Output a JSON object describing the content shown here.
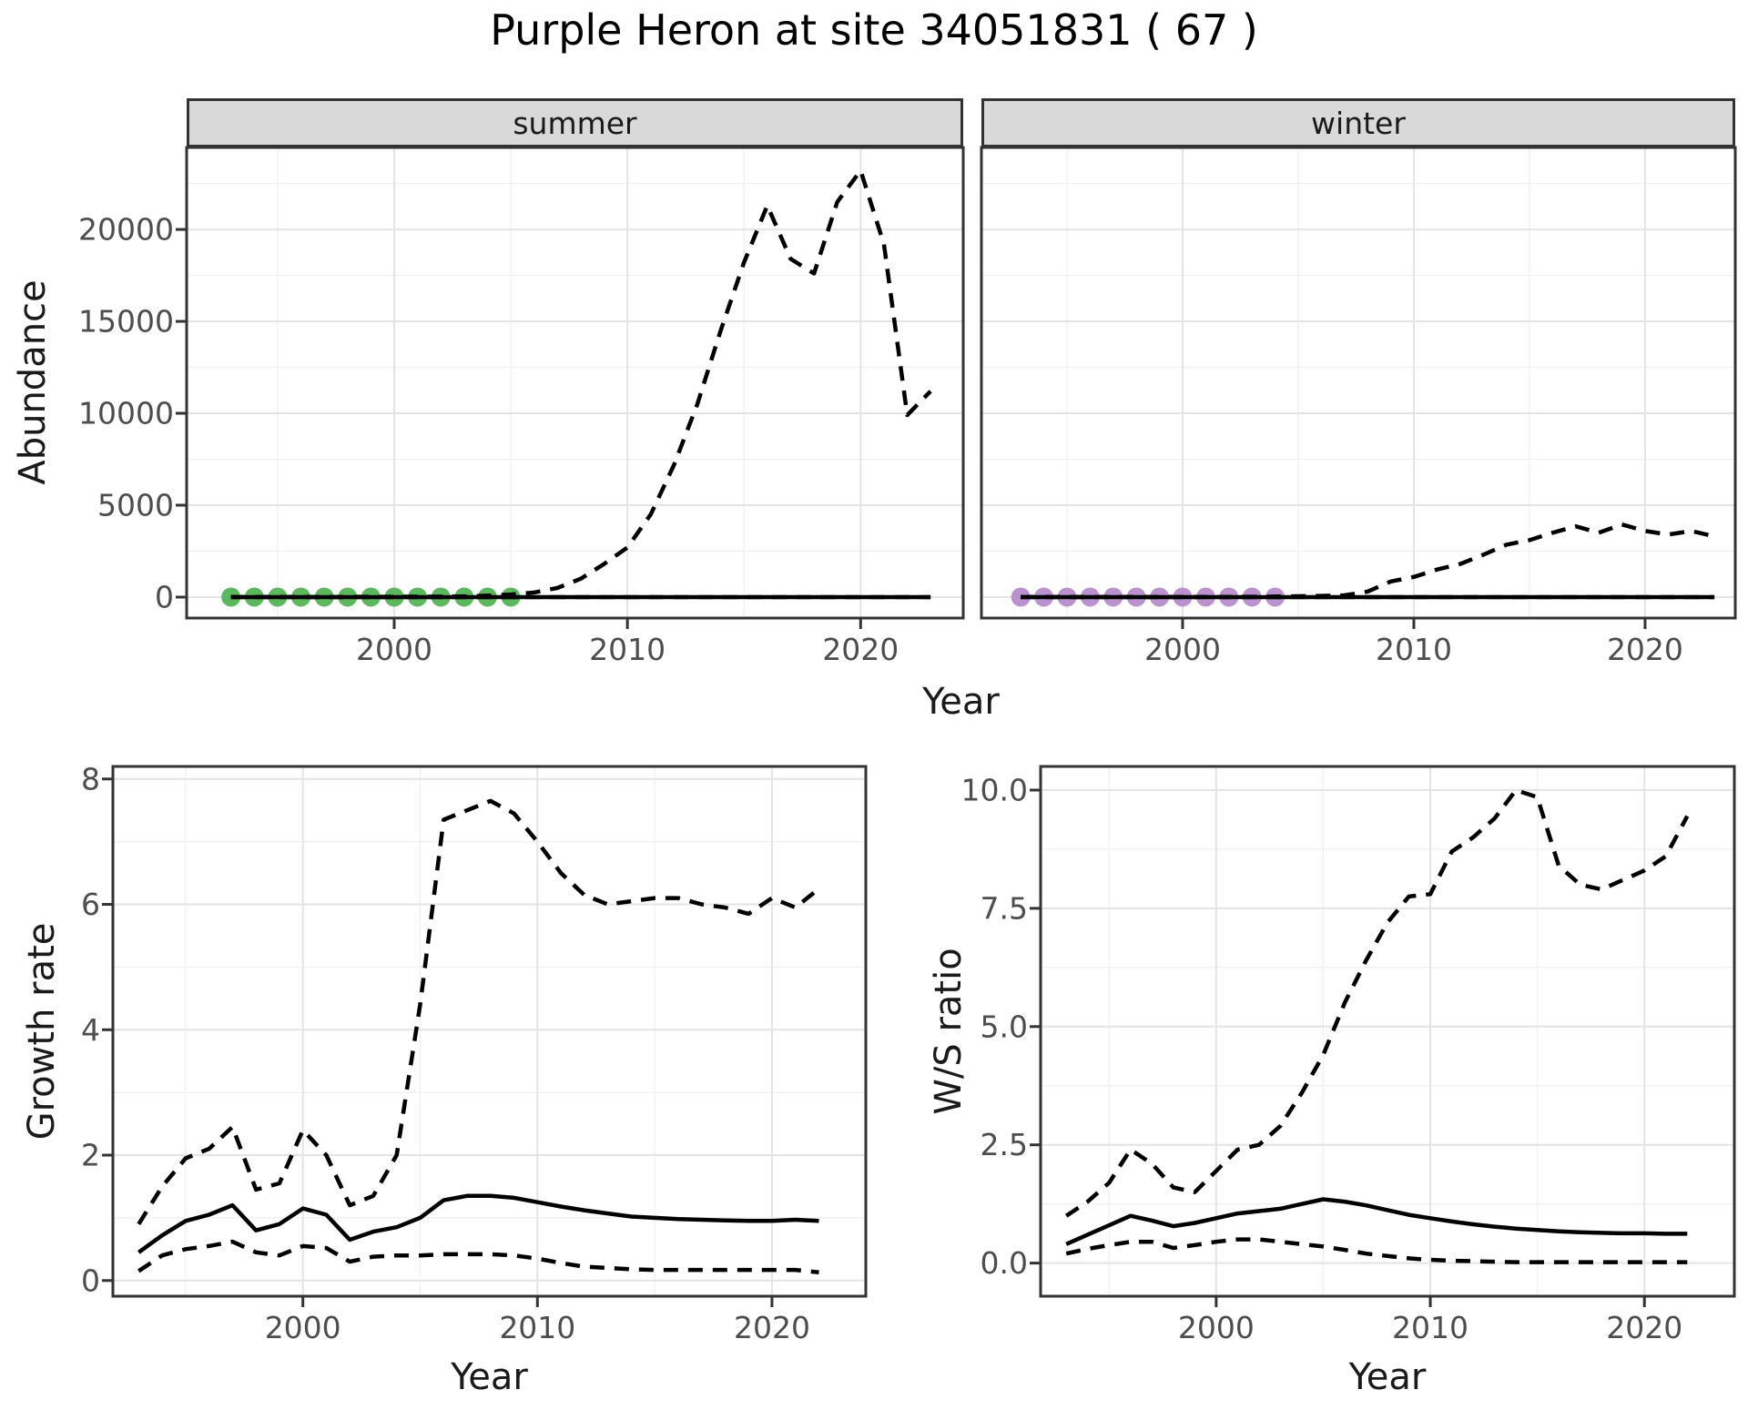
{
  "title": "Purple Heron at site 34051831 ( 67 )",
  "top_row": {
    "xlabel": "Year",
    "ylabel": "Abundance"
  },
  "colors": {
    "summer_points": "#5cb85c",
    "winter_points": "#ba92cd",
    "line": "#000000",
    "strip_bg": "#d9d9d9",
    "grid_major": "#e4e4e4",
    "grid_minor": "#f1f1f1",
    "panel_border": "#333333",
    "tick_label": "#4d4d4d"
  },
  "chart_data": [
    {
      "panel_id": "summer",
      "type": "line",
      "facet": "summer",
      "xlabel": "Year",
      "ylabel": "Abundance",
      "xlim": [
        1991.1,
        2024.4
      ],
      "ylim": [
        -1140,
        24460
      ],
      "grid": true,
      "legend": "none",
      "xticks": {
        "major": [
          2000,
          2010,
          2020
        ],
        "labels": [
          "2000",
          "2010",
          "2020"
        ],
        "minor": [
          1995,
          2005,
          2015
        ]
      },
      "yticks": {
        "major": [
          0,
          5000,
          10000,
          15000,
          20000
        ],
        "labels": [
          "0",
          "5000",
          "10000",
          "15000",
          "20000"
        ],
        "minor": [
          2500,
          7500,
          12500,
          17500,
          22500
        ]
      },
      "series": [
        {
          "name": "observed-counts",
          "type": "points",
          "color_key": "summer_points",
          "x": [
            1993,
            1994,
            1995,
            1996,
            1997,
            1998,
            1999,
            2000,
            2001,
            2002,
            2003,
            2004,
            2005
          ],
          "y": [
            0,
            0,
            0,
            0,
            0,
            0,
            0,
            0,
            0,
            0,
            0,
            0,
            0
          ]
        },
        {
          "name": "lower-ci",
          "type": "line",
          "dash": true,
          "x": [
            1993,
            1994,
            1995,
            1996,
            1997,
            1998,
            1999,
            2000,
            2001,
            2002,
            2003,
            2004,
            2005,
            2006,
            2007,
            2008,
            2009,
            2010,
            2011,
            2012,
            2013,
            2014,
            2015,
            2016,
            2017,
            2018,
            2019,
            2020,
            2021,
            2022,
            2023
          ],
          "y": [
            0,
            0,
            0,
            0,
            0,
            0,
            0,
            0,
            0,
            0,
            0,
            0,
            0,
            0,
            0,
            0,
            0,
            0,
            0,
            0,
            0,
            0,
            0,
            0,
            0,
            0,
            0,
            0,
            0,
            0,
            0
          ]
        },
        {
          "name": "fitted-median",
          "type": "line",
          "dash": false,
          "x": [
            1993,
            1994,
            1995,
            1996,
            1997,
            1998,
            1999,
            2000,
            2001,
            2002,
            2003,
            2004,
            2005,
            2006,
            2007,
            2008,
            2009,
            2010,
            2011,
            2012,
            2013,
            2014,
            2015,
            2016,
            2017,
            2018,
            2019,
            2020,
            2021,
            2022,
            2023
          ],
          "y": [
            0,
            0,
            0,
            0,
            0,
            0,
            0,
            0,
            0,
            0,
            0,
            0,
            0,
            0,
            0,
            0,
            0,
            0,
            0,
            0,
            0,
            0,
            0,
            0,
            0,
            0,
            0,
            0,
            0,
            0,
            0
          ]
        },
        {
          "name": "upper-ci",
          "type": "line",
          "dash": true,
          "x": [
            1993,
            1994,
            1995,
            1996,
            1997,
            1998,
            1999,
            2000,
            2001,
            2002,
            2003,
            2004,
            2005,
            2006,
            2007,
            2008,
            2009,
            2010,
            2011,
            2012,
            2013,
            2014,
            2015,
            2016,
            2017,
            2018,
            2019,
            2020,
            2021,
            2022,
            2023
          ],
          "y": [
            15,
            15,
            15,
            15,
            15,
            15,
            20,
            20,
            25,
            30,
            40,
            80,
            140,
            250,
            500,
            1000,
            1800,
            2700,
            4500,
            7200,
            10500,
            14500,
            18200,
            21300,
            18400,
            17600,
            21500,
            23200,
            19200,
            9900,
            11200
          ]
        }
      ]
    },
    {
      "panel_id": "winter",
      "type": "line",
      "facet": "winter",
      "xlabel": "Year",
      "ylabel": "Abundance",
      "xlim": [
        1991.3,
        2023.9
      ],
      "ylim": [
        -1140,
        24460
      ],
      "grid": true,
      "legend": "none",
      "xticks": {
        "major": [
          2000,
          2010,
          2020
        ],
        "labels": [
          "2000",
          "2010",
          "2020"
        ],
        "minor": [
          1995,
          2005,
          2015
        ]
      },
      "yticks": {
        "major": [
          0,
          5000,
          10000,
          15000,
          20000
        ],
        "labels": [],
        "minor": [
          2500,
          7500,
          12500,
          17500,
          22500
        ]
      },
      "series": [
        {
          "name": "observed-counts",
          "type": "points",
          "color_key": "winter_points",
          "x": [
            1993,
            1994,
            1995,
            1996,
            1997,
            1998,
            1999,
            2000,
            2001,
            2002,
            2003,
            2004
          ],
          "y": [
            0,
            0,
            0,
            0,
            0,
            0,
            0,
            0,
            0,
            0,
            0,
            0
          ]
        },
        {
          "name": "lower-ci",
          "type": "line",
          "dash": true,
          "x": [
            1993,
            1994,
            1995,
            1996,
            1997,
            1998,
            1999,
            2000,
            2001,
            2002,
            2003,
            2004,
            2005,
            2006,
            2007,
            2008,
            2009,
            2010,
            2011,
            2012,
            2013,
            2014,
            2015,
            2016,
            2017,
            2018,
            2019,
            2020,
            2021,
            2022,
            2023
          ],
          "y": [
            0,
            0,
            0,
            0,
            0,
            0,
            0,
            0,
            0,
            0,
            0,
            0,
            0,
            0,
            0,
            0,
            0,
            0,
            0,
            0,
            0,
            0,
            0,
            0,
            0,
            0,
            0,
            0,
            0,
            0,
            0
          ]
        },
        {
          "name": "fitted-median",
          "type": "line",
          "dash": false,
          "x": [
            1993,
            1994,
            1995,
            1996,
            1997,
            1998,
            1999,
            2000,
            2001,
            2002,
            2003,
            2004,
            2005,
            2006,
            2007,
            2008,
            2009,
            2010,
            2011,
            2012,
            2013,
            2014,
            2015,
            2016,
            2017,
            2018,
            2019,
            2020,
            2021,
            2022,
            2023
          ],
          "y": [
            0,
            0,
            0,
            0,
            0,
            0,
            0,
            0,
            0,
            0,
            0,
            0,
            0,
            0,
            0,
            0,
            0,
            0,
            0,
            0,
            0,
            0,
            0,
            0,
            0,
            0,
            0,
            0,
            0,
            0,
            0
          ]
        },
        {
          "name": "upper-ci",
          "type": "line",
          "dash": true,
          "x": [
            1993,
            1994,
            1995,
            1996,
            1997,
            1998,
            1999,
            2000,
            2001,
            2002,
            2003,
            2004,
            2005,
            2006,
            2007,
            2008,
            2009,
            2010,
            2011,
            2012,
            2013,
            2014,
            2015,
            2016,
            2017,
            2018,
            2019,
            2020,
            2021,
            2022,
            2023
          ],
          "y": [
            10,
            10,
            10,
            10,
            10,
            10,
            10,
            10,
            15,
            15,
            20,
            30,
            50,
            70,
            100,
            300,
            850,
            1100,
            1500,
            1800,
            2300,
            2850,
            3100,
            3500,
            3850,
            3500,
            3950,
            3600,
            3400,
            3600,
            3300
          ]
        }
      ]
    },
    {
      "panel_id": "growth",
      "type": "line",
      "facet": "",
      "xlabel": "Year",
      "ylabel": "Growth rate",
      "xlim": [
        1991.9,
        2024.0
      ],
      "ylim": [
        -0.25,
        8.2
      ],
      "grid": true,
      "legend": "none",
      "xticks": {
        "major": [
          2000,
          2010,
          2020
        ],
        "labels": [
          "2000",
          "2010",
          "2020"
        ],
        "minor": [
          1995,
          2005,
          2015
        ]
      },
      "yticks": {
        "major": [
          0,
          2,
          4,
          6,
          8
        ],
        "labels": [
          "0",
          "2",
          "4",
          "6",
          "8"
        ],
        "minor": [
          1,
          3,
          5,
          7
        ]
      },
      "series": [
        {
          "name": "lower-ci",
          "type": "line",
          "dash": true,
          "x": [
            1993,
            1994,
            1995,
            1996,
            1997,
            1998,
            1999,
            2000,
            2001,
            2002,
            2003,
            2004,
            2005,
            2006,
            2007,
            2008,
            2009,
            2010,
            2011,
            2012,
            2013,
            2014,
            2015,
            2016,
            2017,
            2018,
            2019,
            2020,
            2021,
            2022
          ],
          "y": [
            0.15,
            0.4,
            0.5,
            0.55,
            0.62,
            0.45,
            0.4,
            0.55,
            0.52,
            0.3,
            0.38,
            0.4,
            0.4,
            0.42,
            0.42,
            0.42,
            0.4,
            0.35,
            0.28,
            0.22,
            0.2,
            0.18,
            0.17,
            0.17,
            0.17,
            0.17,
            0.17,
            0.17,
            0.17,
            0.13
          ]
        },
        {
          "name": "median",
          "type": "line",
          "dash": false,
          "x": [
            1993,
            1994,
            1995,
            1996,
            1997,
            1998,
            1999,
            2000,
            2001,
            2002,
            2003,
            2004,
            2005,
            2006,
            2007,
            2008,
            2009,
            2010,
            2011,
            2012,
            2013,
            2014,
            2015,
            2016,
            2017,
            2018,
            2019,
            2020,
            2021,
            2022
          ],
          "y": [
            0.45,
            0.72,
            0.95,
            1.05,
            1.2,
            0.8,
            0.9,
            1.15,
            1.05,
            0.65,
            0.78,
            0.85,
            1.0,
            1.28,
            1.35,
            1.35,
            1.32,
            1.25,
            1.18,
            1.12,
            1.07,
            1.02,
            1.0,
            0.98,
            0.97,
            0.96,
            0.95,
            0.95,
            0.97,
            0.95
          ]
        },
        {
          "name": "upper-ci",
          "type": "line",
          "dash": true,
          "x": [
            1993,
            1994,
            1995,
            1996,
            1997,
            1998,
            1999,
            2000,
            2001,
            2002,
            2003,
            2004,
            2005,
            2006,
            2007,
            2008,
            2009,
            2010,
            2011,
            2012,
            2013,
            2014,
            2015,
            2016,
            2017,
            2018,
            2019,
            2020,
            2021,
            2022
          ],
          "y": [
            0.9,
            1.5,
            1.95,
            2.1,
            2.45,
            1.45,
            1.55,
            2.4,
            2.0,
            1.2,
            1.35,
            2.0,
            4.4,
            7.35,
            7.5,
            7.65,
            7.45,
            7.0,
            6.5,
            6.15,
            6.0,
            6.05,
            6.1,
            6.1,
            6.0,
            5.95,
            5.85,
            6.1,
            5.95,
            6.25
          ]
        }
      ]
    },
    {
      "panel_id": "ws",
      "type": "line",
      "facet": "",
      "xlabel": "Year",
      "ylabel": "W/S ratio",
      "xlim": [
        1991.8,
        2024.2
      ],
      "ylim": [
        -0.7,
        10.5
      ],
      "grid": true,
      "legend": "none",
      "xticks": {
        "major": [
          2000,
          2010,
          2020
        ],
        "labels": [
          "2000",
          "2010",
          "2020"
        ],
        "minor": [
          1995,
          2005,
          2015
        ]
      },
      "yticks": {
        "major": [
          0,
          2.5,
          5,
          7.5,
          10
        ],
        "labels": [
          "0.0",
          "2.5",
          "5.0",
          "7.5",
          "10.0"
        ],
        "minor": [
          1.25,
          3.75,
          6.25,
          8.75
        ]
      },
      "series": [
        {
          "name": "lower-ci",
          "type": "line",
          "dash": true,
          "x": [
            1993,
            1994,
            1995,
            1996,
            1997,
            1998,
            1999,
            2000,
            2001,
            2002,
            2003,
            2004,
            2005,
            2006,
            2007,
            2008,
            2009,
            2010,
            2011,
            2012,
            2013,
            2014,
            2015,
            2016,
            2017,
            2018,
            2019,
            2020,
            2021,
            2022
          ],
          "y": [
            0.2,
            0.3,
            0.38,
            0.45,
            0.45,
            0.32,
            0.38,
            0.45,
            0.5,
            0.5,
            0.45,
            0.4,
            0.35,
            0.28,
            0.2,
            0.15,
            0.1,
            0.07,
            0.05,
            0.04,
            0.03,
            0.02,
            0.02,
            0.02,
            0.02,
            0.02,
            0.02,
            0.02,
            0.02,
            0.02
          ]
        },
        {
          "name": "median",
          "type": "line",
          "dash": false,
          "x": [
            1993,
            1994,
            1995,
            1996,
            1997,
            1998,
            1999,
            2000,
            2001,
            2002,
            2003,
            2004,
            2005,
            2006,
            2007,
            2008,
            2009,
            2010,
            2011,
            2012,
            2013,
            2014,
            2015,
            2016,
            2017,
            2018,
            2019,
            2020,
            2021,
            2022
          ],
          "y": [
            0.4,
            0.6,
            0.8,
            1.0,
            0.9,
            0.78,
            0.85,
            0.95,
            1.05,
            1.1,
            1.15,
            1.25,
            1.35,
            1.3,
            1.22,
            1.12,
            1.02,
            0.95,
            0.88,
            0.82,
            0.77,
            0.73,
            0.7,
            0.67,
            0.65,
            0.64,
            0.63,
            0.63,
            0.62,
            0.62
          ]
        },
        {
          "name": "upper-ci",
          "type": "line",
          "dash": true,
          "x": [
            1993,
            1994,
            1995,
            1996,
            1997,
            1998,
            1999,
            2000,
            2001,
            2002,
            2003,
            2004,
            2005,
            2006,
            2007,
            2008,
            2009,
            2010,
            2011,
            2012,
            2013,
            2014,
            2015,
            2016,
            2017,
            2018,
            2019,
            2020,
            2021,
            2022
          ],
          "y": [
            1.0,
            1.3,
            1.7,
            2.4,
            2.1,
            1.6,
            1.5,
            1.95,
            2.4,
            2.5,
            2.9,
            3.6,
            4.4,
            5.5,
            6.4,
            7.2,
            7.75,
            7.8,
            8.7,
            9.0,
            9.4,
            10.0,
            9.85,
            8.4,
            8.0,
            7.9,
            8.1,
            8.3,
            8.6,
            9.45
          ]
        }
      ]
    }
  ]
}
